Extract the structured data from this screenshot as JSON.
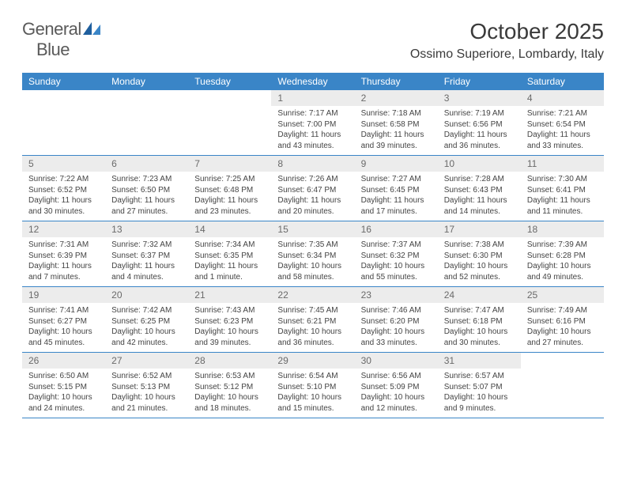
{
  "logo": {
    "part1": "General",
    "part2": "Blue"
  },
  "title": "October 2025",
  "location": "Ossimo Superiore, Lombardy, Italy",
  "colors": {
    "header_bg": "#3a85c7",
    "header_text": "#ffffff",
    "daynum_bg": "#ececec",
    "daynum_text": "#6a6a6a",
    "body_text": "#444444",
    "logo_gray": "#5a5a5a",
    "logo_blue": "#2b7bbf",
    "row_border": "#3a85c7"
  },
  "weekdays": [
    "Sunday",
    "Monday",
    "Tuesday",
    "Wednesday",
    "Thursday",
    "Friday",
    "Saturday"
  ],
  "weeks": [
    [
      {
        "n": "",
        "sr": "",
        "ss": "",
        "dl": ""
      },
      {
        "n": "",
        "sr": "",
        "ss": "",
        "dl": ""
      },
      {
        "n": "",
        "sr": "",
        "ss": "",
        "dl": ""
      },
      {
        "n": "1",
        "sr": "Sunrise: 7:17 AM",
        "ss": "Sunset: 7:00 PM",
        "dl": "Daylight: 11 hours and 43 minutes."
      },
      {
        "n": "2",
        "sr": "Sunrise: 7:18 AM",
        "ss": "Sunset: 6:58 PM",
        "dl": "Daylight: 11 hours and 39 minutes."
      },
      {
        "n": "3",
        "sr": "Sunrise: 7:19 AM",
        "ss": "Sunset: 6:56 PM",
        "dl": "Daylight: 11 hours and 36 minutes."
      },
      {
        "n": "4",
        "sr": "Sunrise: 7:21 AM",
        "ss": "Sunset: 6:54 PM",
        "dl": "Daylight: 11 hours and 33 minutes."
      }
    ],
    [
      {
        "n": "5",
        "sr": "Sunrise: 7:22 AM",
        "ss": "Sunset: 6:52 PM",
        "dl": "Daylight: 11 hours and 30 minutes."
      },
      {
        "n": "6",
        "sr": "Sunrise: 7:23 AM",
        "ss": "Sunset: 6:50 PM",
        "dl": "Daylight: 11 hours and 27 minutes."
      },
      {
        "n": "7",
        "sr": "Sunrise: 7:25 AM",
        "ss": "Sunset: 6:48 PM",
        "dl": "Daylight: 11 hours and 23 minutes."
      },
      {
        "n": "8",
        "sr": "Sunrise: 7:26 AM",
        "ss": "Sunset: 6:47 PM",
        "dl": "Daylight: 11 hours and 20 minutes."
      },
      {
        "n": "9",
        "sr": "Sunrise: 7:27 AM",
        "ss": "Sunset: 6:45 PM",
        "dl": "Daylight: 11 hours and 17 minutes."
      },
      {
        "n": "10",
        "sr": "Sunrise: 7:28 AM",
        "ss": "Sunset: 6:43 PM",
        "dl": "Daylight: 11 hours and 14 minutes."
      },
      {
        "n": "11",
        "sr": "Sunrise: 7:30 AM",
        "ss": "Sunset: 6:41 PM",
        "dl": "Daylight: 11 hours and 11 minutes."
      }
    ],
    [
      {
        "n": "12",
        "sr": "Sunrise: 7:31 AM",
        "ss": "Sunset: 6:39 PM",
        "dl": "Daylight: 11 hours and 7 minutes."
      },
      {
        "n": "13",
        "sr": "Sunrise: 7:32 AM",
        "ss": "Sunset: 6:37 PM",
        "dl": "Daylight: 11 hours and 4 minutes."
      },
      {
        "n": "14",
        "sr": "Sunrise: 7:34 AM",
        "ss": "Sunset: 6:35 PM",
        "dl": "Daylight: 11 hours and 1 minute."
      },
      {
        "n": "15",
        "sr": "Sunrise: 7:35 AM",
        "ss": "Sunset: 6:34 PM",
        "dl": "Daylight: 10 hours and 58 minutes."
      },
      {
        "n": "16",
        "sr": "Sunrise: 7:37 AM",
        "ss": "Sunset: 6:32 PM",
        "dl": "Daylight: 10 hours and 55 minutes."
      },
      {
        "n": "17",
        "sr": "Sunrise: 7:38 AM",
        "ss": "Sunset: 6:30 PM",
        "dl": "Daylight: 10 hours and 52 minutes."
      },
      {
        "n": "18",
        "sr": "Sunrise: 7:39 AM",
        "ss": "Sunset: 6:28 PM",
        "dl": "Daylight: 10 hours and 49 minutes."
      }
    ],
    [
      {
        "n": "19",
        "sr": "Sunrise: 7:41 AM",
        "ss": "Sunset: 6:27 PM",
        "dl": "Daylight: 10 hours and 45 minutes."
      },
      {
        "n": "20",
        "sr": "Sunrise: 7:42 AM",
        "ss": "Sunset: 6:25 PM",
        "dl": "Daylight: 10 hours and 42 minutes."
      },
      {
        "n": "21",
        "sr": "Sunrise: 7:43 AM",
        "ss": "Sunset: 6:23 PM",
        "dl": "Daylight: 10 hours and 39 minutes."
      },
      {
        "n": "22",
        "sr": "Sunrise: 7:45 AM",
        "ss": "Sunset: 6:21 PM",
        "dl": "Daylight: 10 hours and 36 minutes."
      },
      {
        "n": "23",
        "sr": "Sunrise: 7:46 AM",
        "ss": "Sunset: 6:20 PM",
        "dl": "Daylight: 10 hours and 33 minutes."
      },
      {
        "n": "24",
        "sr": "Sunrise: 7:47 AM",
        "ss": "Sunset: 6:18 PM",
        "dl": "Daylight: 10 hours and 30 minutes."
      },
      {
        "n": "25",
        "sr": "Sunrise: 7:49 AM",
        "ss": "Sunset: 6:16 PM",
        "dl": "Daylight: 10 hours and 27 minutes."
      }
    ],
    [
      {
        "n": "26",
        "sr": "Sunrise: 6:50 AM",
        "ss": "Sunset: 5:15 PM",
        "dl": "Daylight: 10 hours and 24 minutes."
      },
      {
        "n": "27",
        "sr": "Sunrise: 6:52 AM",
        "ss": "Sunset: 5:13 PM",
        "dl": "Daylight: 10 hours and 21 minutes."
      },
      {
        "n": "28",
        "sr": "Sunrise: 6:53 AM",
        "ss": "Sunset: 5:12 PM",
        "dl": "Daylight: 10 hours and 18 minutes."
      },
      {
        "n": "29",
        "sr": "Sunrise: 6:54 AM",
        "ss": "Sunset: 5:10 PM",
        "dl": "Daylight: 10 hours and 15 minutes."
      },
      {
        "n": "30",
        "sr": "Sunrise: 6:56 AM",
        "ss": "Sunset: 5:09 PM",
        "dl": "Daylight: 10 hours and 12 minutes."
      },
      {
        "n": "31",
        "sr": "Sunrise: 6:57 AM",
        "ss": "Sunset: 5:07 PM",
        "dl": "Daylight: 10 hours and 9 minutes."
      },
      {
        "n": "",
        "sr": "",
        "ss": "",
        "dl": ""
      }
    ]
  ]
}
